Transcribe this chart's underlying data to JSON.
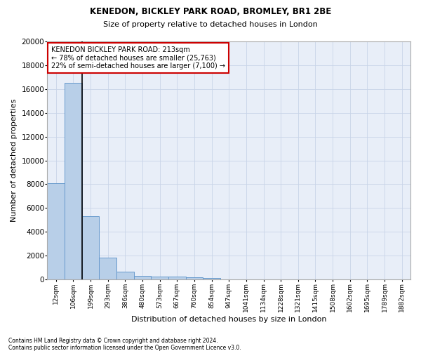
{
  "title1": "KENEDON, BICKLEY PARK ROAD, BROMLEY, BR1 2BE",
  "title2": "Size of property relative to detached houses in London",
  "xlabel": "Distribution of detached houses by size in London",
  "ylabel": "Number of detached properties",
  "bar_color": "#b8cfe8",
  "bar_edge_color": "#6699cc",
  "categories": [
    "12sqm",
    "106sqm",
    "199sqm",
    "293sqm",
    "386sqm",
    "480sqm",
    "573sqm",
    "667sqm",
    "760sqm",
    "854sqm",
    "947sqm",
    "1041sqm",
    "1134sqm",
    "1228sqm",
    "1321sqm",
    "1415sqm",
    "1508sqm",
    "1602sqm",
    "1695sqm",
    "1789sqm",
    "1882sqm"
  ],
  "values": [
    8100,
    16500,
    5300,
    1850,
    650,
    330,
    270,
    220,
    180,
    100,
    0,
    0,
    0,
    0,
    0,
    0,
    0,
    0,
    0,
    0,
    0
  ],
  "ylim": [
    0,
    20000
  ],
  "yticks": [
    0,
    2000,
    4000,
    6000,
    8000,
    10000,
    12000,
    14000,
    16000,
    18000,
    20000
  ],
  "annotation_box_text": "KENEDON BICKLEY PARK ROAD: 213sqm\n← 78% of detached houses are smaller (25,763)\n22% of semi-detached houses are larger (7,100) →",
  "annotation_box_color": "#cc0000",
  "footnote1": "Contains HM Land Registry data © Crown copyright and database right 2024.",
  "footnote2": "Contains public sector information licensed under the Open Government Licence v3.0.",
  "grid_color": "#c8d4e8",
  "bg_color": "#e8eef8"
}
